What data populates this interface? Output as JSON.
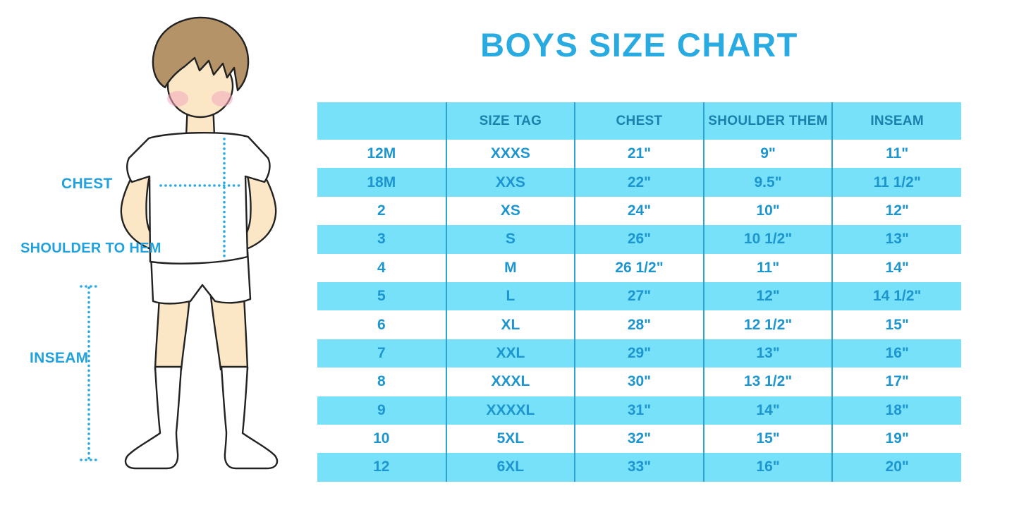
{
  "title": "BOYS SIZE CHART",
  "figure": {
    "labels": {
      "chest": "CHEST",
      "shoulder_to_hem": "SHOULDER TO HEM",
      "inseam": "INSEAM"
    }
  },
  "colors": {
    "accent_blue": "#29ABE2",
    "label_blue": "#22A2DC",
    "table_fill": "#77E1FA",
    "row_text": "#1D95CF",
    "header_text": "#1C80AC",
    "grid_line": "#2EA3D2",
    "skin": "#FBE7C6",
    "hair": "#B59368",
    "cheek": "#F3A9BE"
  },
  "chart_data": {
    "type": "table",
    "title": "BOYS SIZE CHART",
    "columns": [
      "",
      "SIZE TAG",
      "CHEST",
      "SHOULDER THEM",
      "INSEAM"
    ],
    "rows": [
      [
        "12M",
        "XXXS",
        "21\"",
        "9\"",
        "11\""
      ],
      [
        "18M",
        "XXS",
        "22\"",
        "9.5\"",
        "11 1/2\""
      ],
      [
        "2",
        "XS",
        "24\"",
        "10\"",
        "12\""
      ],
      [
        "3",
        "S",
        "26\"",
        "10 1/2\"",
        "13\""
      ],
      [
        "4",
        "M",
        "26 1/2\"",
        "11\"",
        "14\""
      ],
      [
        "5",
        "L",
        "27\"",
        "12\"",
        "14 1/2\""
      ],
      [
        "6",
        "XL",
        "28\"",
        "12 1/2\"",
        "15\""
      ],
      [
        "7",
        "XXL",
        "29\"",
        "13\"",
        "16\""
      ],
      [
        "8",
        "XXXL",
        "30\"",
        "13 1/2\"",
        "17\""
      ],
      [
        "9",
        "XXXXL",
        "31\"",
        "14\"",
        "18\""
      ],
      [
        "10",
        "5XL",
        "32\"",
        "15\"",
        "19\""
      ],
      [
        "12",
        "6XL",
        "33\"",
        "16\"",
        "20\""
      ]
    ],
    "row_striping": "first data row white, alternating light blue",
    "legend_position": "none",
    "grid": "vertical column separators only"
  }
}
